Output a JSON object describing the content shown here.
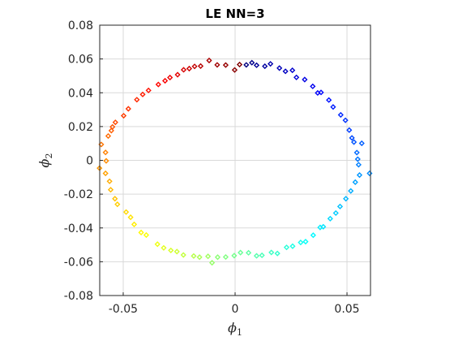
{
  "chart_data": {
    "type": "scatter",
    "title": "LE NN=3",
    "xlabel": {
      "base": "ϕ",
      "sub": "1"
    },
    "ylabel": {
      "base": "ϕ",
      "sub": "2"
    },
    "xlim": [
      -0.0605,
      0.0605
    ],
    "ylim": [
      -0.08,
      0.08
    ],
    "xticks": [
      -0.05,
      0,
      0.05
    ],
    "xtick_labels": [
      "-0.05",
      "0",
      "0.05"
    ],
    "yticks": [
      -0.08,
      -0.06,
      -0.04,
      -0.02,
      0,
      0.02,
      0.04,
      0.06,
      0.08
    ],
    "ytick_labels": [
      "-0.08",
      "-0.06",
      "-0.04",
      "-0.02",
      "0",
      "0.02",
      "0.04",
      "0.06",
      "0.08"
    ],
    "grid": true,
    "colormap": "jet",
    "marker": "diamond",
    "points": [
      {
        "x": 0.005,
        "y": 0.0565
      },
      {
        "x": 0.0075,
        "y": 0.0578
      },
      {
        "x": 0.0096,
        "y": 0.0563
      },
      {
        "x": 0.0133,
        "y": 0.0557
      },
      {
        "x": 0.0158,
        "y": 0.0571
      },
      {
        "x": 0.0198,
        "y": 0.0546
      },
      {
        "x": 0.0225,
        "y": 0.0527
      },
      {
        "x": 0.0256,
        "y": 0.0533
      },
      {
        "x": 0.0274,
        "y": 0.0491
      },
      {
        "x": 0.0311,
        "y": 0.0478
      },
      {
        "x": 0.0347,
        "y": 0.0438
      },
      {
        "x": 0.0369,
        "y": 0.0399
      },
      {
        "x": 0.0384,
        "y": 0.0402
      },
      {
        "x": 0.0419,
        "y": 0.0357
      },
      {
        "x": 0.0438,
        "y": 0.0316
      },
      {
        "x": 0.0472,
        "y": 0.0269
      },
      {
        "x": 0.0493,
        "y": 0.0237
      },
      {
        "x": 0.051,
        "y": 0.0179
      },
      {
        "x": 0.0522,
        "y": 0.0133
      },
      {
        "x": 0.0531,
        "y": 0.0108
      },
      {
        "x": 0.0566,
        "y": 0.0101
      },
      {
        "x": 0.0544,
        "y": 0.0046
      },
      {
        "x": 0.0548,
        "y": 0.0007
      },
      {
        "x": 0.0552,
        "y": -0.0026
      },
      {
        "x": 0.0601,
        "y": -0.0077
      },
      {
        "x": 0.0556,
        "y": -0.0087
      },
      {
        "x": 0.0537,
        "y": -0.0129
      },
      {
        "x": 0.0517,
        "y": -0.0181
      },
      {
        "x": 0.0495,
        "y": -0.0227
      },
      {
        "x": 0.0469,
        "y": -0.0273
      },
      {
        "x": 0.045,
        "y": -0.0312
      },
      {
        "x": 0.0425,
        "y": -0.0345
      },
      {
        "x": 0.0394,
        "y": -0.0393
      },
      {
        "x": 0.038,
        "y": -0.0397
      },
      {
        "x": 0.0349,
        "y": -0.0443
      },
      {
        "x": 0.0315,
        "y": -0.0481
      },
      {
        "x": 0.0293,
        "y": -0.0486
      },
      {
        "x": 0.0257,
        "y": -0.0508
      },
      {
        "x": 0.023,
        "y": -0.0515
      },
      {
        "x": 0.0189,
        "y": -0.0551
      },
      {
        "x": 0.0162,
        "y": -0.0545
      },
      {
        "x": 0.012,
        "y": -0.0562
      },
      {
        "x": 0.0096,
        "y": -0.0565
      },
      {
        "x": 0.006,
        "y": -0.0547
      },
      {
        "x": 0.0024,
        "y": -0.0546
      },
      {
        "x": -0.0004,
        "y": -0.0564
      },
      {
        "x": -0.0042,
        "y": -0.0572
      },
      {
        "x": -0.0078,
        "y": -0.0573
      },
      {
        "x": -0.0103,
        "y": -0.0606
      },
      {
        "x": -0.0121,
        "y": -0.0568
      },
      {
        "x": -0.0159,
        "y": -0.0573
      },
      {
        "x": -0.0185,
        "y": -0.0566
      },
      {
        "x": -0.0231,
        "y": -0.056
      },
      {
        "x": -0.026,
        "y": -0.054
      },
      {
        "x": -0.0287,
        "y": -0.0533
      },
      {
        "x": -0.0319,
        "y": -0.0518
      },
      {
        "x": -0.0347,
        "y": -0.0496
      },
      {
        "x": -0.0397,
        "y": -0.0442
      },
      {
        "x": -0.042,
        "y": -0.0427
      },
      {
        "x": -0.0451,
        "y": -0.0379
      },
      {
        "x": -0.0467,
        "y": -0.0337
      },
      {
        "x": -0.0487,
        "y": -0.0306
      },
      {
        "x": -0.0526,
        "y": -0.026
      },
      {
        "x": -0.0537,
        "y": -0.0227
      },
      {
        "x": -0.0556,
        "y": -0.0174
      },
      {
        "x": -0.0561,
        "y": -0.0124
      },
      {
        "x": -0.0579,
        "y": -0.0077
      },
      {
        "x": -0.0606,
        "y": -0.0046
      },
      {
        "x": -0.0576,
        "y": -0.0003
      },
      {
        "x": -0.0579,
        "y": 0.0047
      },
      {
        "x": -0.0598,
        "y": 0.0094
      },
      {
        "x": -0.0567,
        "y": 0.0144
      },
      {
        "x": -0.0553,
        "y": 0.0176
      },
      {
        "x": -0.0548,
        "y": 0.0198
      },
      {
        "x": -0.0535,
        "y": 0.0225
      },
      {
        "x": -0.0498,
        "y": 0.0264
      },
      {
        "x": -0.0477,
        "y": 0.0305
      },
      {
        "x": -0.0439,
        "y": 0.0359
      },
      {
        "x": -0.0413,
        "y": 0.039
      },
      {
        "x": -0.0387,
        "y": 0.0414
      },
      {
        "x": -0.0343,
        "y": 0.0449
      },
      {
        "x": -0.0313,
        "y": 0.0471
      },
      {
        "x": -0.0291,
        "y": 0.049
      },
      {
        "x": -0.0257,
        "y": 0.0507
      },
      {
        "x": -0.023,
        "y": 0.0536
      },
      {
        "x": -0.0205,
        "y": 0.0543
      },
      {
        "x": -0.0181,
        "y": 0.0556
      },
      {
        "x": -0.0154,
        "y": 0.0558
      },
      {
        "x": -0.0116,
        "y": 0.0591
      },
      {
        "x": -0.008,
        "y": 0.0565
      },
      {
        "x": -0.0042,
        "y": 0.0564
      },
      {
        "x": -0.0002,
        "y": 0.0535
      },
      {
        "x": 0.002,
        "y": 0.0567
      }
    ]
  }
}
